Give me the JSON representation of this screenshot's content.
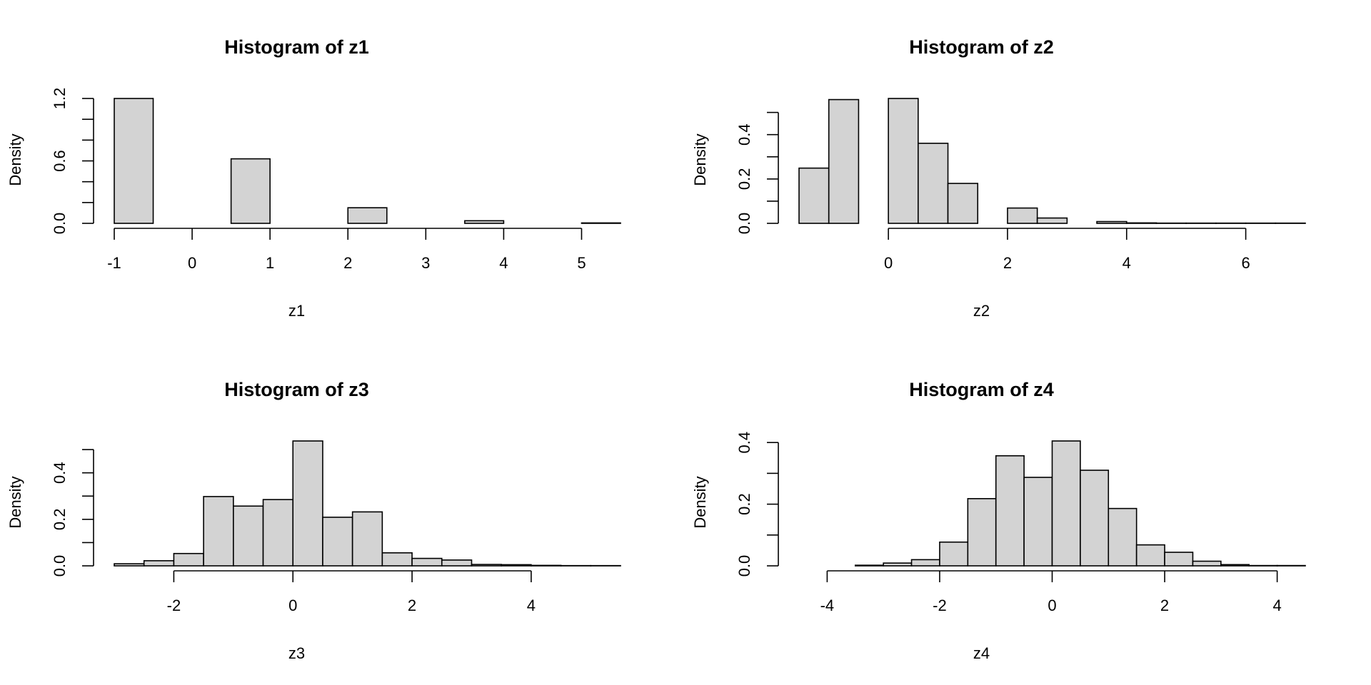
{
  "chart_data": [
    {
      "type": "bar",
      "title": "Histogram of z1",
      "xlabel": "z1",
      "ylabel": "Density",
      "bin_width": 0.5,
      "bin_start": -1,
      "values": [
        1.2,
        0,
        0,
        0.62,
        0,
        0,
        0.15,
        0,
        0,
        0.025,
        0,
        0,
        0.004
      ],
      "xlim": [
        -1,
        5.5
      ],
      "xticks": [
        -1,
        0,
        1,
        2,
        3,
        4,
        5
      ],
      "xtick_labels": [
        "-1",
        "0",
        "1",
        "2",
        "3",
        "4",
        "5"
      ],
      "yticks": [
        0,
        0.2,
        0.4,
        0.6,
        0.8,
        1.0,
        1.2
      ],
      "ytick_labels": [
        "0.0",
        "",
        "",
        "0.6",
        "",
        "",
        "1.2"
      ],
      "ylim": [
        0,
        1.2
      ]
    },
    {
      "type": "bar",
      "title": "Histogram of z2",
      "xlabel": "z2",
      "ylabel": "Density",
      "bin_width": 0.5,
      "bin_start": -1.5,
      "values": [
        0.249,
        0.558,
        0,
        0.563,
        0.361,
        0.18,
        0,
        0.069,
        0.024,
        0,
        0.008,
        0.002,
        0.001,
        0.001,
        0.001,
        0.001,
        0.001
      ],
      "xlim": [
        -1.5,
        7
      ],
      "xticks": [
        0,
        2,
        4,
        6
      ],
      "xtick_labels": [
        "0",
        "2",
        "4",
        "6"
      ],
      "yticks": [
        0,
        0.1,
        0.2,
        0.3,
        0.4,
        0.5
      ],
      "ytick_labels": [
        "0.0",
        "",
        "0.2",
        "",
        "0.4",
        ""
      ],
      "ylim": [
        0,
        0.563
      ]
    },
    {
      "type": "bar",
      "title": "Histogram of z3",
      "xlabel": "z3",
      "ylabel": "Density",
      "bin_width": 0.5,
      "bin_start": -3,
      "values": [
        0.009,
        0.022,
        0.053,
        0.298,
        0.257,
        0.285,
        0.537,
        0.209,
        0.232,
        0.056,
        0.032,
        0.025,
        0.006,
        0.005,
        0.002,
        0.001,
        0.001
      ],
      "xlim": [
        -3,
        5.5
      ],
      "xticks": [
        -2,
        0,
        2,
        4
      ],
      "xtick_labels": [
        "-2",
        "0",
        "2",
        "4"
      ],
      "yticks": [
        0,
        0.1,
        0.2,
        0.3,
        0.4,
        0.5
      ],
      "ytick_labels": [
        "0.0",
        "",
        "0.2",
        "",
        "0.4",
        ""
      ],
      "ylim": [
        0,
        0.537
      ]
    },
    {
      "type": "bar",
      "title": "Histogram of z4",
      "xlabel": "z4",
      "ylabel": "Density",
      "bin_width": 0.5,
      "bin_start": -4.5,
      "values": [
        0,
        0,
        0.002,
        0.009,
        0.02,
        0.077,
        0.218,
        0.357,
        0.287,
        0.405,
        0.31,
        0.186,
        0.068,
        0.044,
        0.015,
        0.004,
        0.001,
        0.001
      ],
      "xlim": [
        -4.5,
        4.5
      ],
      "xticks": [
        -4,
        -2,
        0,
        2,
        4
      ],
      "xtick_labels": [
        "-4",
        "-2",
        "0",
        "2",
        "4"
      ],
      "yticks": [
        0,
        0.1,
        0.2,
        0.3,
        0.4
      ],
      "ytick_labels": [
        "0.0",
        "",
        "0.2",
        "",
        "0.4"
      ],
      "ylim": [
        0,
        0.405
      ]
    }
  ],
  "colors": {
    "bar_fill": "#d3d3d3",
    "stroke": "#000000"
  }
}
